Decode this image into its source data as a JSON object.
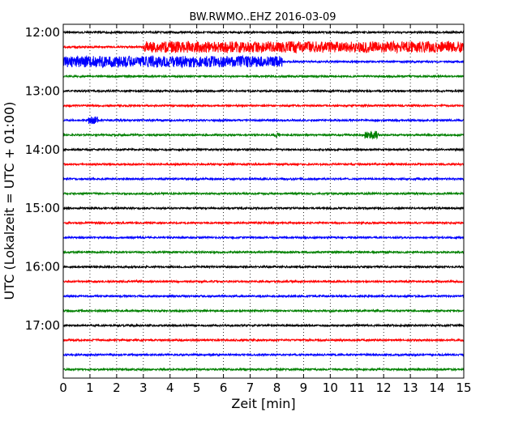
{
  "chart_data": {
    "type": "line",
    "title": "BW.RWMO..EHZ 2016-03-09",
    "xlabel": "Zeit  [min]",
    "ylabel": "UTC (Lokalzeit = UTC + 01:00)",
    "xlim": [
      0,
      15
    ],
    "x_ticks": [
      0,
      1,
      2,
      3,
      4,
      5,
      6,
      7,
      8,
      9,
      10,
      11,
      12,
      13,
      14,
      15
    ],
    "x_tick_labels": [
      "0",
      "1",
      "2",
      "3",
      "4",
      "5",
      "6",
      "7",
      "8",
      "9",
      "10",
      "11",
      "12",
      "13",
      "14",
      "15"
    ],
    "y_ticks": [
      "12:00",
      "13:00",
      "14:00",
      "15:00",
      "16:00",
      "17:00"
    ],
    "trace_colors": [
      "#000000",
      "#ff0000",
      "#0000ff",
      "#008000"
    ],
    "grid": "vertical dotted",
    "trace_start_times": [
      "12:00",
      "12:15",
      "12:30",
      "12:45",
      "13:00",
      "13:15",
      "13:30",
      "13:45",
      "14:00",
      "14:15",
      "14:30",
      "14:45",
      "15:00",
      "15:15",
      "15:30",
      "15:45",
      "16:00",
      "16:15",
      "16:30",
      "16:45",
      "17:00",
      "17:15",
      "17:30",
      "17:45"
    ],
    "events": [
      {
        "trace": "12:15",
        "from_min": 3.0,
        "to_min": 15.0,
        "amplitude": "large"
      },
      {
        "trace": "12:30",
        "from_min": 0.0,
        "to_min": 8.2,
        "amplitude": "large"
      },
      {
        "trace": "13:30",
        "from_min": 0.9,
        "to_min": 1.3,
        "amplitude": "medium"
      },
      {
        "trace": "13:45",
        "from_min": 11.3,
        "to_min": 11.8,
        "amplitude": "medium"
      },
      {
        "trace": "13:45",
        "from_min": 7.9,
        "to_min": 8.1,
        "amplitude": "small"
      }
    ]
  }
}
